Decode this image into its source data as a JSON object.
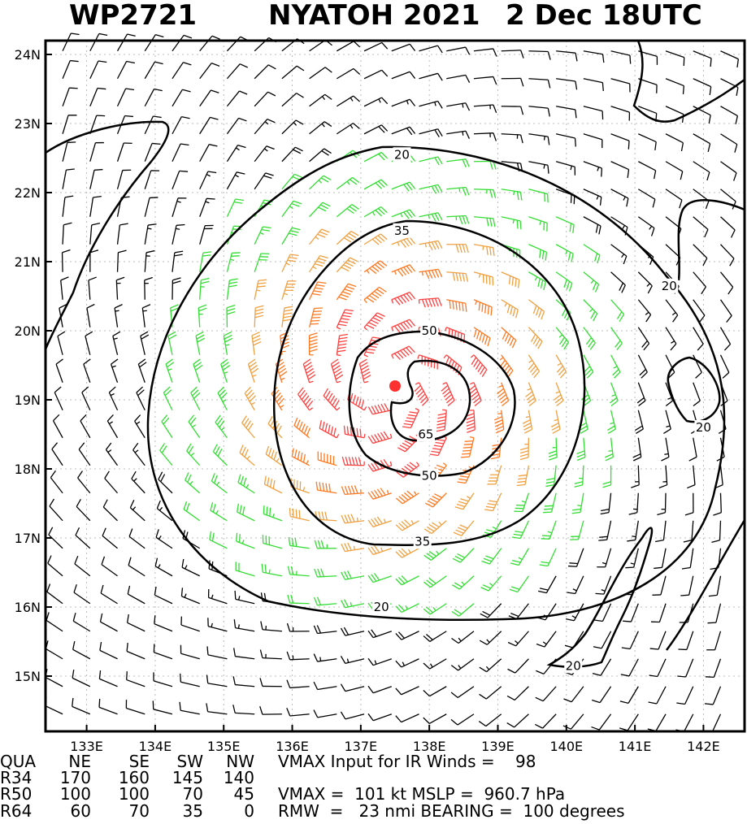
{
  "header": {
    "storm_id": "WP2721",
    "storm_name_year": "NYATOH 2021",
    "datetime": "2 Dec 18UTC"
  },
  "chart_data": {
    "type": "wind-barb-map",
    "xlim": [
      132.4,
      142.6
    ],
    "ylim": [
      14.2,
      24.2
    ],
    "x_ticks": [
      {
        "value": 133,
        "label": "133E"
      },
      {
        "value": 134,
        "label": "134E"
      },
      {
        "value": 135,
        "label": "135E"
      },
      {
        "value": 136,
        "label": "136E"
      },
      {
        "value": 137,
        "label": "137E"
      },
      {
        "value": 138,
        "label": "138E"
      },
      {
        "value": 139,
        "label": "139E"
      },
      {
        "value": 140,
        "label": "140E"
      },
      {
        "value": 141,
        "label": "141E"
      },
      {
        "value": 142,
        "label": "142E"
      }
    ],
    "y_ticks": [
      {
        "value": 15,
        "label": "15N"
      },
      {
        "value": 16,
        "label": "16N"
      },
      {
        "value": 17,
        "label": "17N"
      },
      {
        "value": 18,
        "label": "18N"
      },
      {
        "value": 19,
        "label": "19N"
      },
      {
        "value": 20,
        "label": "20N"
      },
      {
        "value": 21,
        "label": "21N"
      },
      {
        "value": 22,
        "label": "22N"
      },
      {
        "value": 23,
        "label": "23N"
      },
      {
        "value": 24,
        "label": "24N"
      }
    ],
    "center": {
      "lon": 137.5,
      "lat": 19.2,
      "color": "#ff3030"
    },
    "contour_levels": [
      20,
      35,
      50,
      65
    ],
    "contour_labels": [
      {
        "text": "20",
        "lon": 137.6,
        "lat": 22.55
      },
      {
        "text": "20",
        "lon": 141.5,
        "lat": 20.65
      },
      {
        "text": "20",
        "lon": 142.0,
        "lat": 18.6
      },
      {
        "text": "20",
        "lon": 137.3,
        "lat": 16.0
      },
      {
        "text": "20",
        "lon": 140.1,
        "lat": 15.15
      },
      {
        "text": "35",
        "lon": 137.6,
        "lat": 21.45
      },
      {
        "text": "35",
        "lon": 137.9,
        "lat": 16.95
      },
      {
        "text": "50",
        "lon": 138.0,
        "lat": 20.0
      },
      {
        "text": "50",
        "lon": 138.0,
        "lat": 17.9
      },
      {
        "text": "65",
        "lon": 137.95,
        "lat": 18.5
      }
    ],
    "wind_colors": {
      "below_20": "#000000",
      "20_to_35": "#33dd33",
      "35_to_50": "#f0a040",
      "50_to_65": "#ff7820",
      "above_65": "#ff4040"
    }
  },
  "footer": {
    "quadrant_header": {
      "label": "QUA",
      "ne": "NE",
      "se": "SE",
      "sw": "SW",
      "nw": "NW"
    },
    "r34": {
      "label": "R34",
      "ne": "170",
      "se": "160",
      "sw": "145",
      "nw": "140"
    },
    "r50": {
      "label": "R50",
      "ne": "100",
      "se": "100",
      "sw": "70",
      "nw": "45"
    },
    "r64": {
      "label": "R64",
      "ne": "60",
      "se": "70",
      "sw": "35",
      "nw": "0"
    },
    "vmax_input": "VMAX Input for IR Winds =    98",
    "vmax_mslp": "VMAX =  101 kt MSLP =  960.7 hPa",
    "rmw_bearing": "RMW  =   23 nmi BEARING =  100 degrees"
  }
}
